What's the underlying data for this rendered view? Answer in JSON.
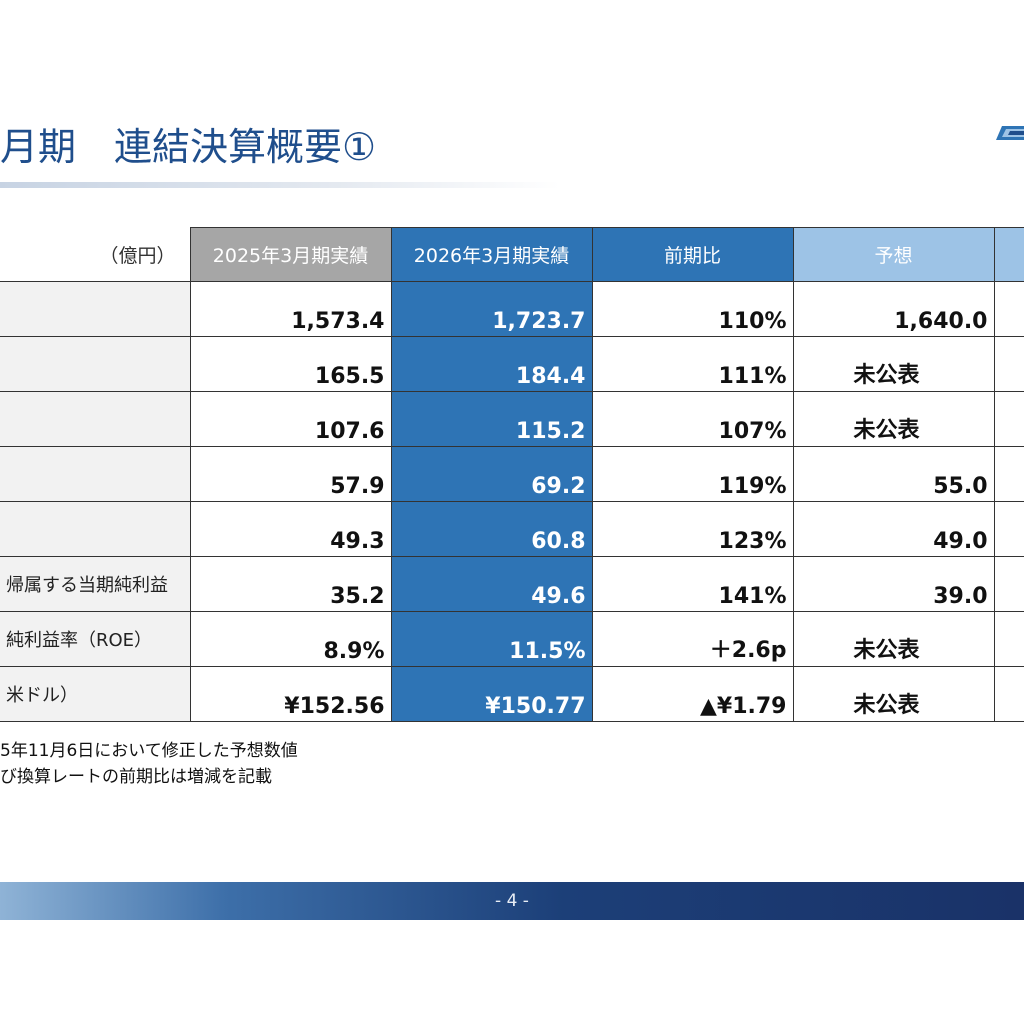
{
  "title": "月期　連結決算概要①",
  "table": {
    "unit": "（億円）",
    "headers": {
      "prev": "2025年3月期実績",
      "curr": "2026年3月期実績",
      "yoy": "前期比",
      "forecast": "予想"
    },
    "rows": [
      {
        "label": "",
        "prev": "1,573.4",
        "curr": "1,723.7",
        "yoy": "110%",
        "forecast": "1,640.0"
      },
      {
        "label": "",
        "prev": "165.5",
        "curr": "184.4",
        "yoy": "111%",
        "forecast": "未公表"
      },
      {
        "label": "",
        "prev": "107.6",
        "curr": "115.2",
        "yoy": "107%",
        "forecast": "未公表"
      },
      {
        "label": "",
        "prev": "57.9",
        "curr": "69.2",
        "yoy": "119%",
        "forecast": "55.0"
      },
      {
        "label": "",
        "prev": "49.3",
        "curr": "60.8",
        "yoy": "123%",
        "forecast": "49.0"
      },
      {
        "label": "帰属する当期純利益",
        "prev": "35.2",
        "curr": "49.6",
        "yoy": "141%",
        "forecast": "39.0"
      },
      {
        "label": "純利益率（ROE）",
        "prev": "8.9%",
        "curr": "11.5%",
        "yoy": "＋2.6p",
        "forecast": "未公表"
      },
      {
        "label": "米ドル）",
        "prev": "¥152.56",
        "curr": "¥150.77",
        "yoy": "▲¥1.79",
        "forecast": "未公表"
      }
    ]
  },
  "notes": [
    "5年11月6日において修正した予想数値",
    "び換算レートの前期比は増減を記載"
  ],
  "footer": {
    "page_number": "- 4 -"
  },
  "colors": {
    "title": "#1f4e8c",
    "header_prev": "#a6a6a6",
    "header_curr": "#2e74b5",
    "header_forecast": "#9dc3e6",
    "footer": "#1c3f78"
  }
}
